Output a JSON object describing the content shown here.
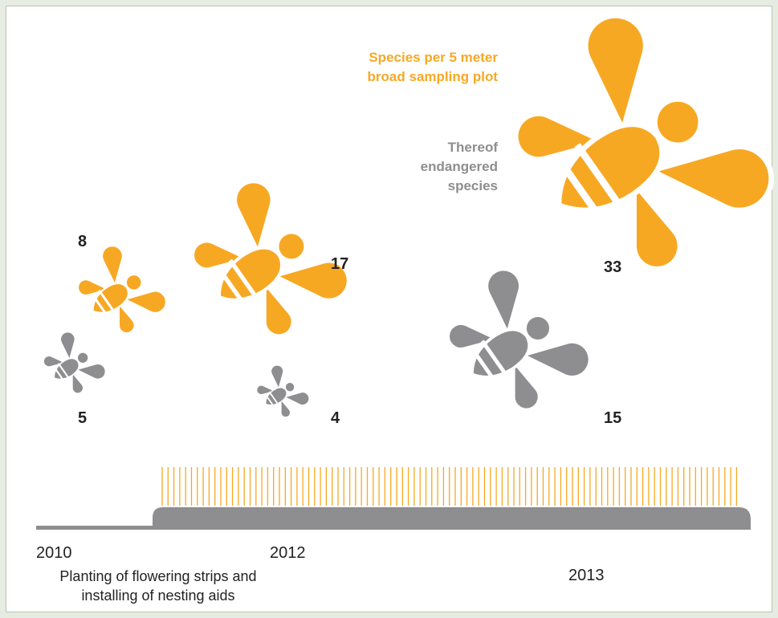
{
  "chart_data": {
    "type": "bee",
    "categories": [
      "2010",
      "2012",
      "2013"
    ],
    "series": [
      {
        "name": "Species per 5 meter broad sampling plot",
        "color": "#f7a823",
        "values": [
          8,
          17,
          33
        ]
      },
      {
        "name": "Thereof endangered species",
        "color": "#8e8e90",
        "values": [
          5,
          4,
          15
        ]
      }
    ],
    "annotation": "Planting of flowering strips and installing of nesting aids"
  }
}
